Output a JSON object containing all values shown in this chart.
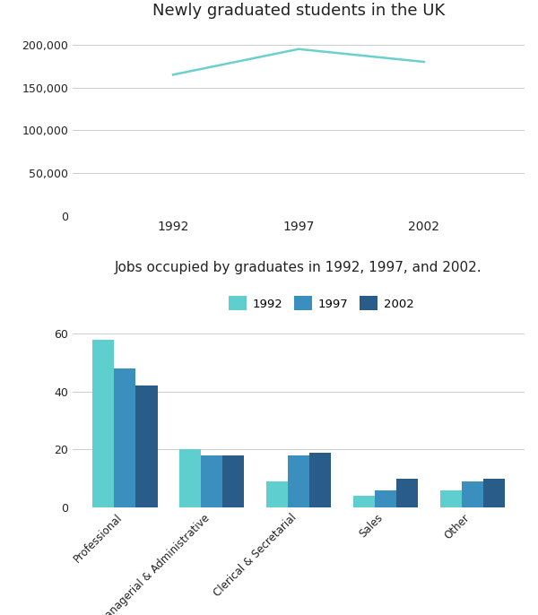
{
  "line_title": "Newly graduated students in the UK",
  "line_years": [
    1992,
    1997,
    2002
  ],
  "line_values": [
    165000,
    195000,
    180000
  ],
  "line_color": "#6dcfcf",
  "line_ylim": [
    0,
    220000
  ],
  "line_yticks": [
    0,
    50000,
    100000,
    150000,
    200000
  ],
  "line_ytick_labels": [
    "0",
    "50,000",
    "100,000",
    "150,000",
    "200,000"
  ],
  "bar_title": "Jobs occupied by graduates in 1992, 1997, and 2002.",
  "bar_categories": [
    "Professional",
    "Managerial & Administrative",
    "Clerical & Secretarial",
    "Sales",
    "Other"
  ],
  "bar_years": [
    "1992",
    "1997",
    "2002"
  ],
  "bar_colors": [
    "#5ecece",
    "#3a8fbf",
    "#2a5c8a"
  ],
  "bar_data": {
    "1992": [
      58,
      20,
      9,
      4,
      6
    ],
    "1997": [
      48,
      18,
      18,
      6,
      9
    ],
    "2002": [
      42,
      18,
      19,
      10,
      10
    ]
  },
  "bar_ylim": [
    0,
    65
  ],
  "bar_yticks": [
    0,
    20,
    40,
    60
  ],
  "bar_ytick_labels": [
    "0",
    "20",
    "40",
    "60"
  ],
  "background_color": "#ffffff",
  "grid_color": "#cccccc",
  "font_color": "#222222"
}
